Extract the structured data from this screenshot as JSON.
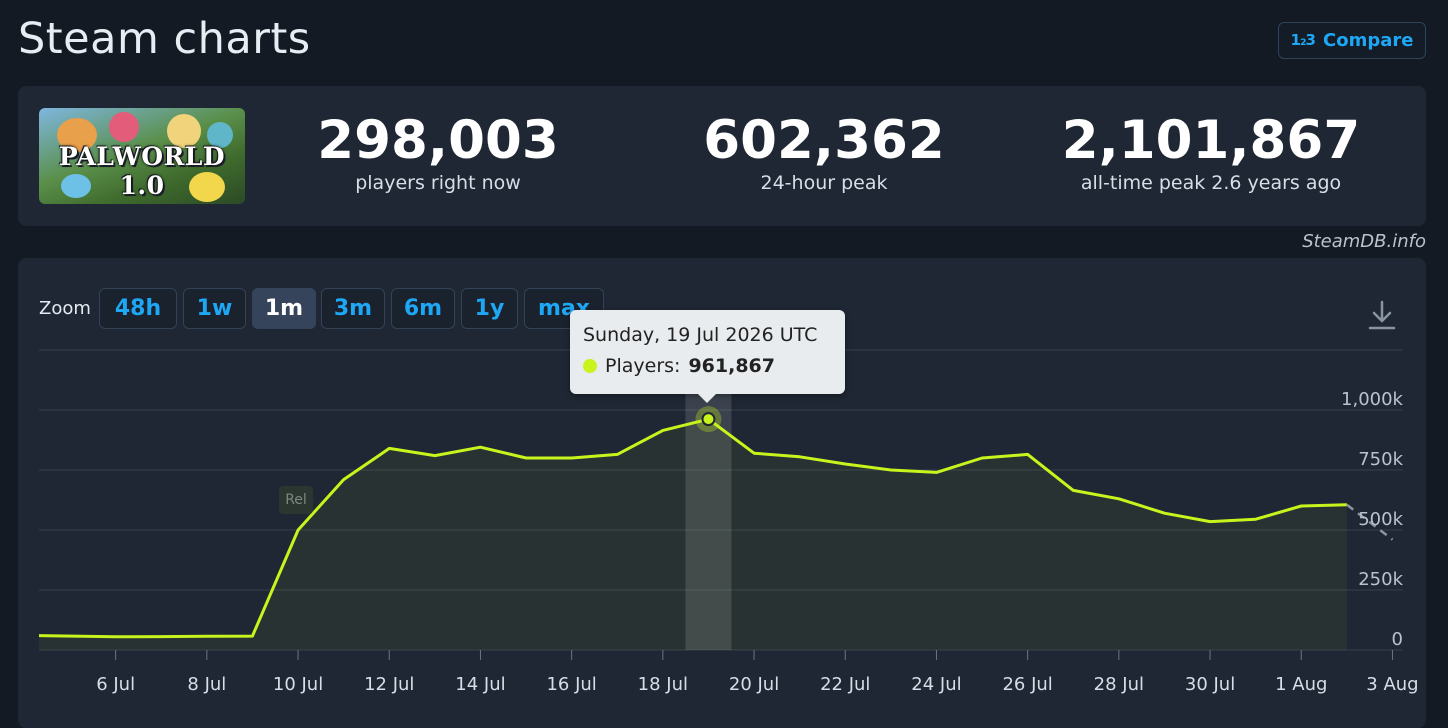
{
  "page": {
    "title": "Steam charts"
  },
  "compare": {
    "icon": "1₂3",
    "label": "Compare"
  },
  "game": {
    "cover_title": "PALWORLD 1.0"
  },
  "stats": [
    {
      "value": "298,003",
      "label": "players right now"
    },
    {
      "value": "602,362",
      "label": "24-hour peak"
    },
    {
      "value": "2,101,867",
      "label": "all-time peak 2.6 years ago"
    }
  ],
  "watermark": "SteamDB.info",
  "zoom": {
    "label": "Zoom",
    "options": [
      "48h",
      "1w",
      "1m",
      "3m",
      "6m",
      "1y",
      "max"
    ],
    "active": "1m"
  },
  "tooltip": {
    "date": "Sunday, 19 Jul 2026 UTC",
    "series_label": "Players:",
    "value": "961,867"
  },
  "annotation": {
    "label": "Rel"
  },
  "colors": {
    "accent": "#1ea7f5",
    "series": "#c9f31d",
    "background": "#141a24",
    "panel": "#1e2733"
  },
  "chart_data": {
    "type": "line",
    "series": [
      {
        "name": "Players",
        "x": [
          "5 Jul",
          "6 Jul",
          "7 Jul",
          "8 Jul",
          "9 Jul",
          "10 Jul",
          "11 Jul",
          "12 Jul",
          "13 Jul",
          "14 Jul",
          "15 Jul",
          "16 Jul",
          "17 Jul",
          "18 Jul",
          "19 Jul",
          "20 Jul",
          "21 Jul",
          "22 Jul",
          "23 Jul",
          "24 Jul",
          "25 Jul",
          "26 Jul",
          "27 Jul",
          "28 Jul",
          "29 Jul",
          "30 Jul",
          "31 Jul",
          "1 Aug",
          "2 Aug"
        ],
        "values": [
          60000,
          55000,
          56000,
          57000,
          58000,
          500000,
          710000,
          840000,
          810000,
          845000,
          800000,
          800000,
          815000,
          915000,
          961867,
          820000,
          805000,
          775000,
          750000,
          740000,
          800000,
          815000,
          665000,
          630000,
          570000,
          535000,
          545000,
          600000,
          605000
        ]
      }
    ],
    "partial_point": {
      "x": "3 Aug",
      "value": 460000
    },
    "x_ticks": [
      "6 Jul",
      "8 Jul",
      "10 Jul",
      "12 Jul",
      "14 Jul",
      "16 Jul",
      "18 Jul",
      "20 Jul",
      "22 Jul",
      "24 Jul",
      "26 Jul",
      "28 Jul",
      "30 Jul",
      "1 Aug",
      "3 Aug"
    ],
    "y_ticks": [
      "0",
      "250k",
      "500k",
      "750k",
      "1,000k"
    ],
    "y_tick_values": [
      0,
      250000,
      500000,
      750000,
      1000000
    ],
    "ylim": [
      0,
      1250000
    ],
    "highlight_x": "19 Jul",
    "grid": true
  }
}
